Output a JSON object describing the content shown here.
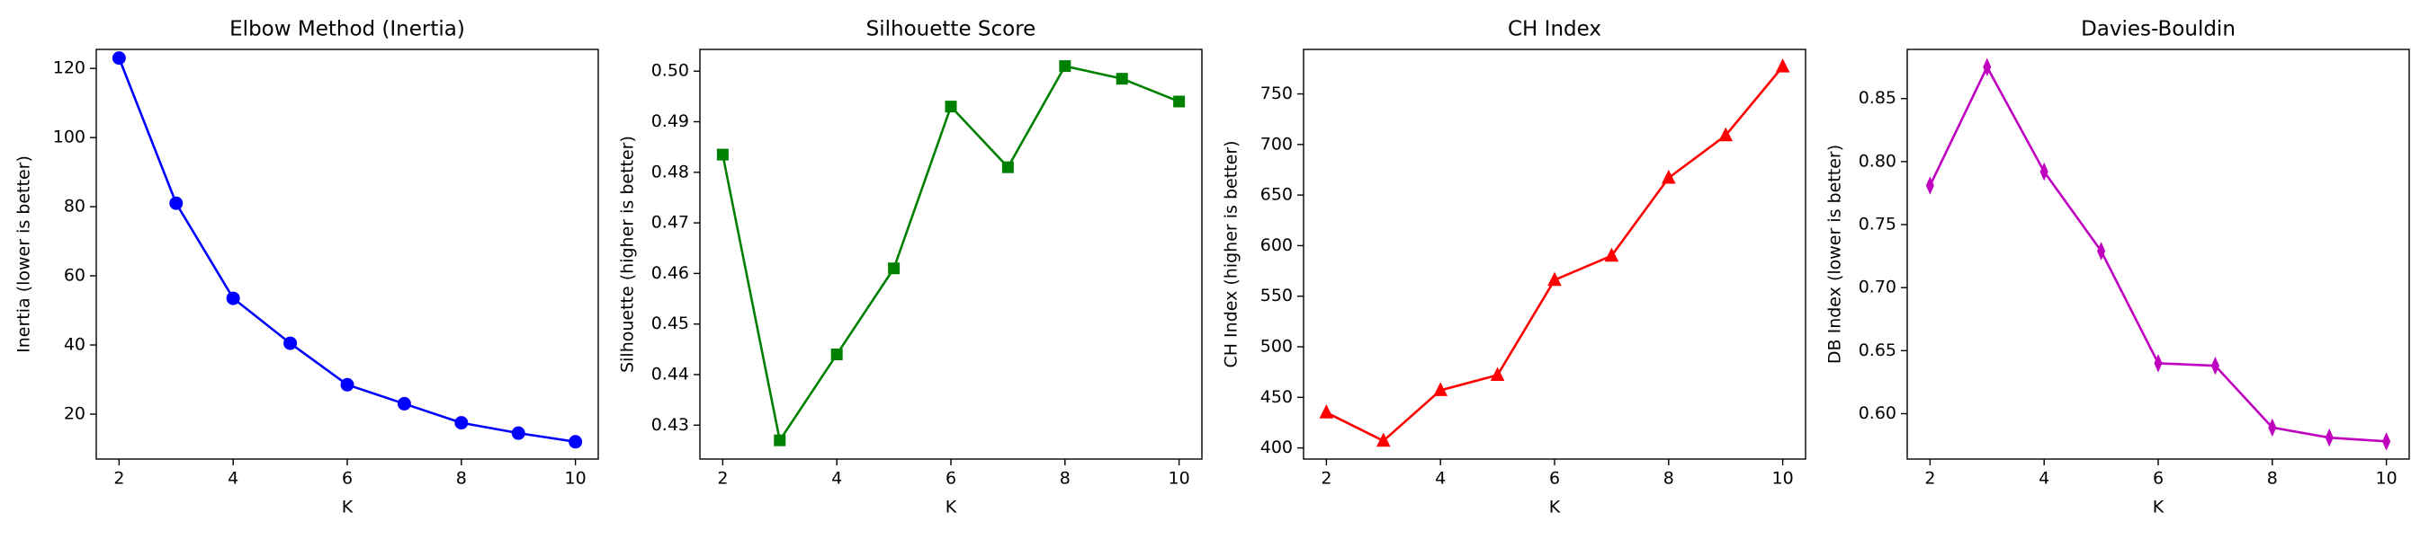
{
  "chart_data": [
    {
      "type": "line",
      "title": "Elbow Method (Inertia)",
      "xlabel": "K",
      "ylabel": "Inertia (lower is better)",
      "x": [
        2,
        3,
        4,
        5,
        6,
        7,
        8,
        9,
        10
      ],
      "values": [
        123,
        81,
        53.5,
        40.5,
        28.5,
        23,
        17.5,
        14.5,
        12
      ],
      "color": "#0000ff",
      "marker": "circle",
      "xlim": [
        1.6,
        10.4
      ],
      "xticks": [
        2,
        4,
        6,
        8,
        10
      ],
      "ylim": [
        7,
        125.5
      ],
      "yticks": [
        20,
        40,
        60,
        80,
        100,
        120
      ]
    },
    {
      "type": "line",
      "title": "Silhouette Score",
      "xlabel": "K",
      "ylabel": "Silhouette (higher is better)",
      "x": [
        2,
        3,
        4,
        5,
        6,
        7,
        8,
        9,
        10
      ],
      "values": [
        0.4835,
        0.427,
        0.444,
        0.461,
        0.493,
        0.481,
        0.501,
        0.4985,
        0.494
      ],
      "color": "#008000",
      "marker": "square",
      "xlim": [
        1.6,
        10.4
      ],
      "xticks": [
        2,
        4,
        6,
        8,
        10
      ],
      "ylim": [
        0.4233,
        0.5043
      ],
      "yticks": [
        0.43,
        0.44,
        0.45,
        0.46,
        0.47,
        0.48,
        0.49,
        {
          "value": 0.5,
          "label": "0.50"
        }
      ]
    },
    {
      "type": "line",
      "title": "CH Index",
      "xlabel": "K",
      "ylabel": "CH Index (higher is better)",
      "x": [
        2,
        3,
        4,
        5,
        6,
        7,
        8,
        9,
        10
      ],
      "values": [
        435,
        407,
        457,
        472,
        566,
        590,
        667,
        709,
        777
      ],
      "color": "#ff0000",
      "marker": "triangle",
      "xlim": [
        1.6,
        10.4
      ],
      "xticks": [
        2,
        4,
        6,
        8,
        10
      ],
      "ylim": [
        389,
        794
      ],
      "yticks": [
        400,
        450,
        500,
        550,
        600,
        650,
        700,
        750
      ]
    },
    {
      "type": "line",
      "title": "Davies-Bouldin",
      "xlabel": "K",
      "ylabel": "DB Index (lower is better)",
      "x": [
        2,
        3,
        4,
        5,
        6,
        7,
        8,
        9,
        10
      ],
      "values": [
        0.781,
        0.875,
        0.792,
        0.729,
        0.64,
        0.638,
        0.589,
        0.581,
        0.578
      ],
      "color": "#bf00bf",
      "marker": "thin-diamond",
      "xlim": [
        1.6,
        10.4
      ],
      "xticks": [
        2,
        4,
        6,
        8,
        10
      ],
      "ylim": [
        0.564,
        0.889
      ],
      "yticks": [
        {
          "value": 0.6,
          "label": "0.60"
        },
        0.65,
        {
          "value": 0.7,
          "label": "0.70"
        },
        0.75,
        {
          "value": 0.8,
          "label": "0.80"
        },
        0.85
      ]
    }
  ]
}
